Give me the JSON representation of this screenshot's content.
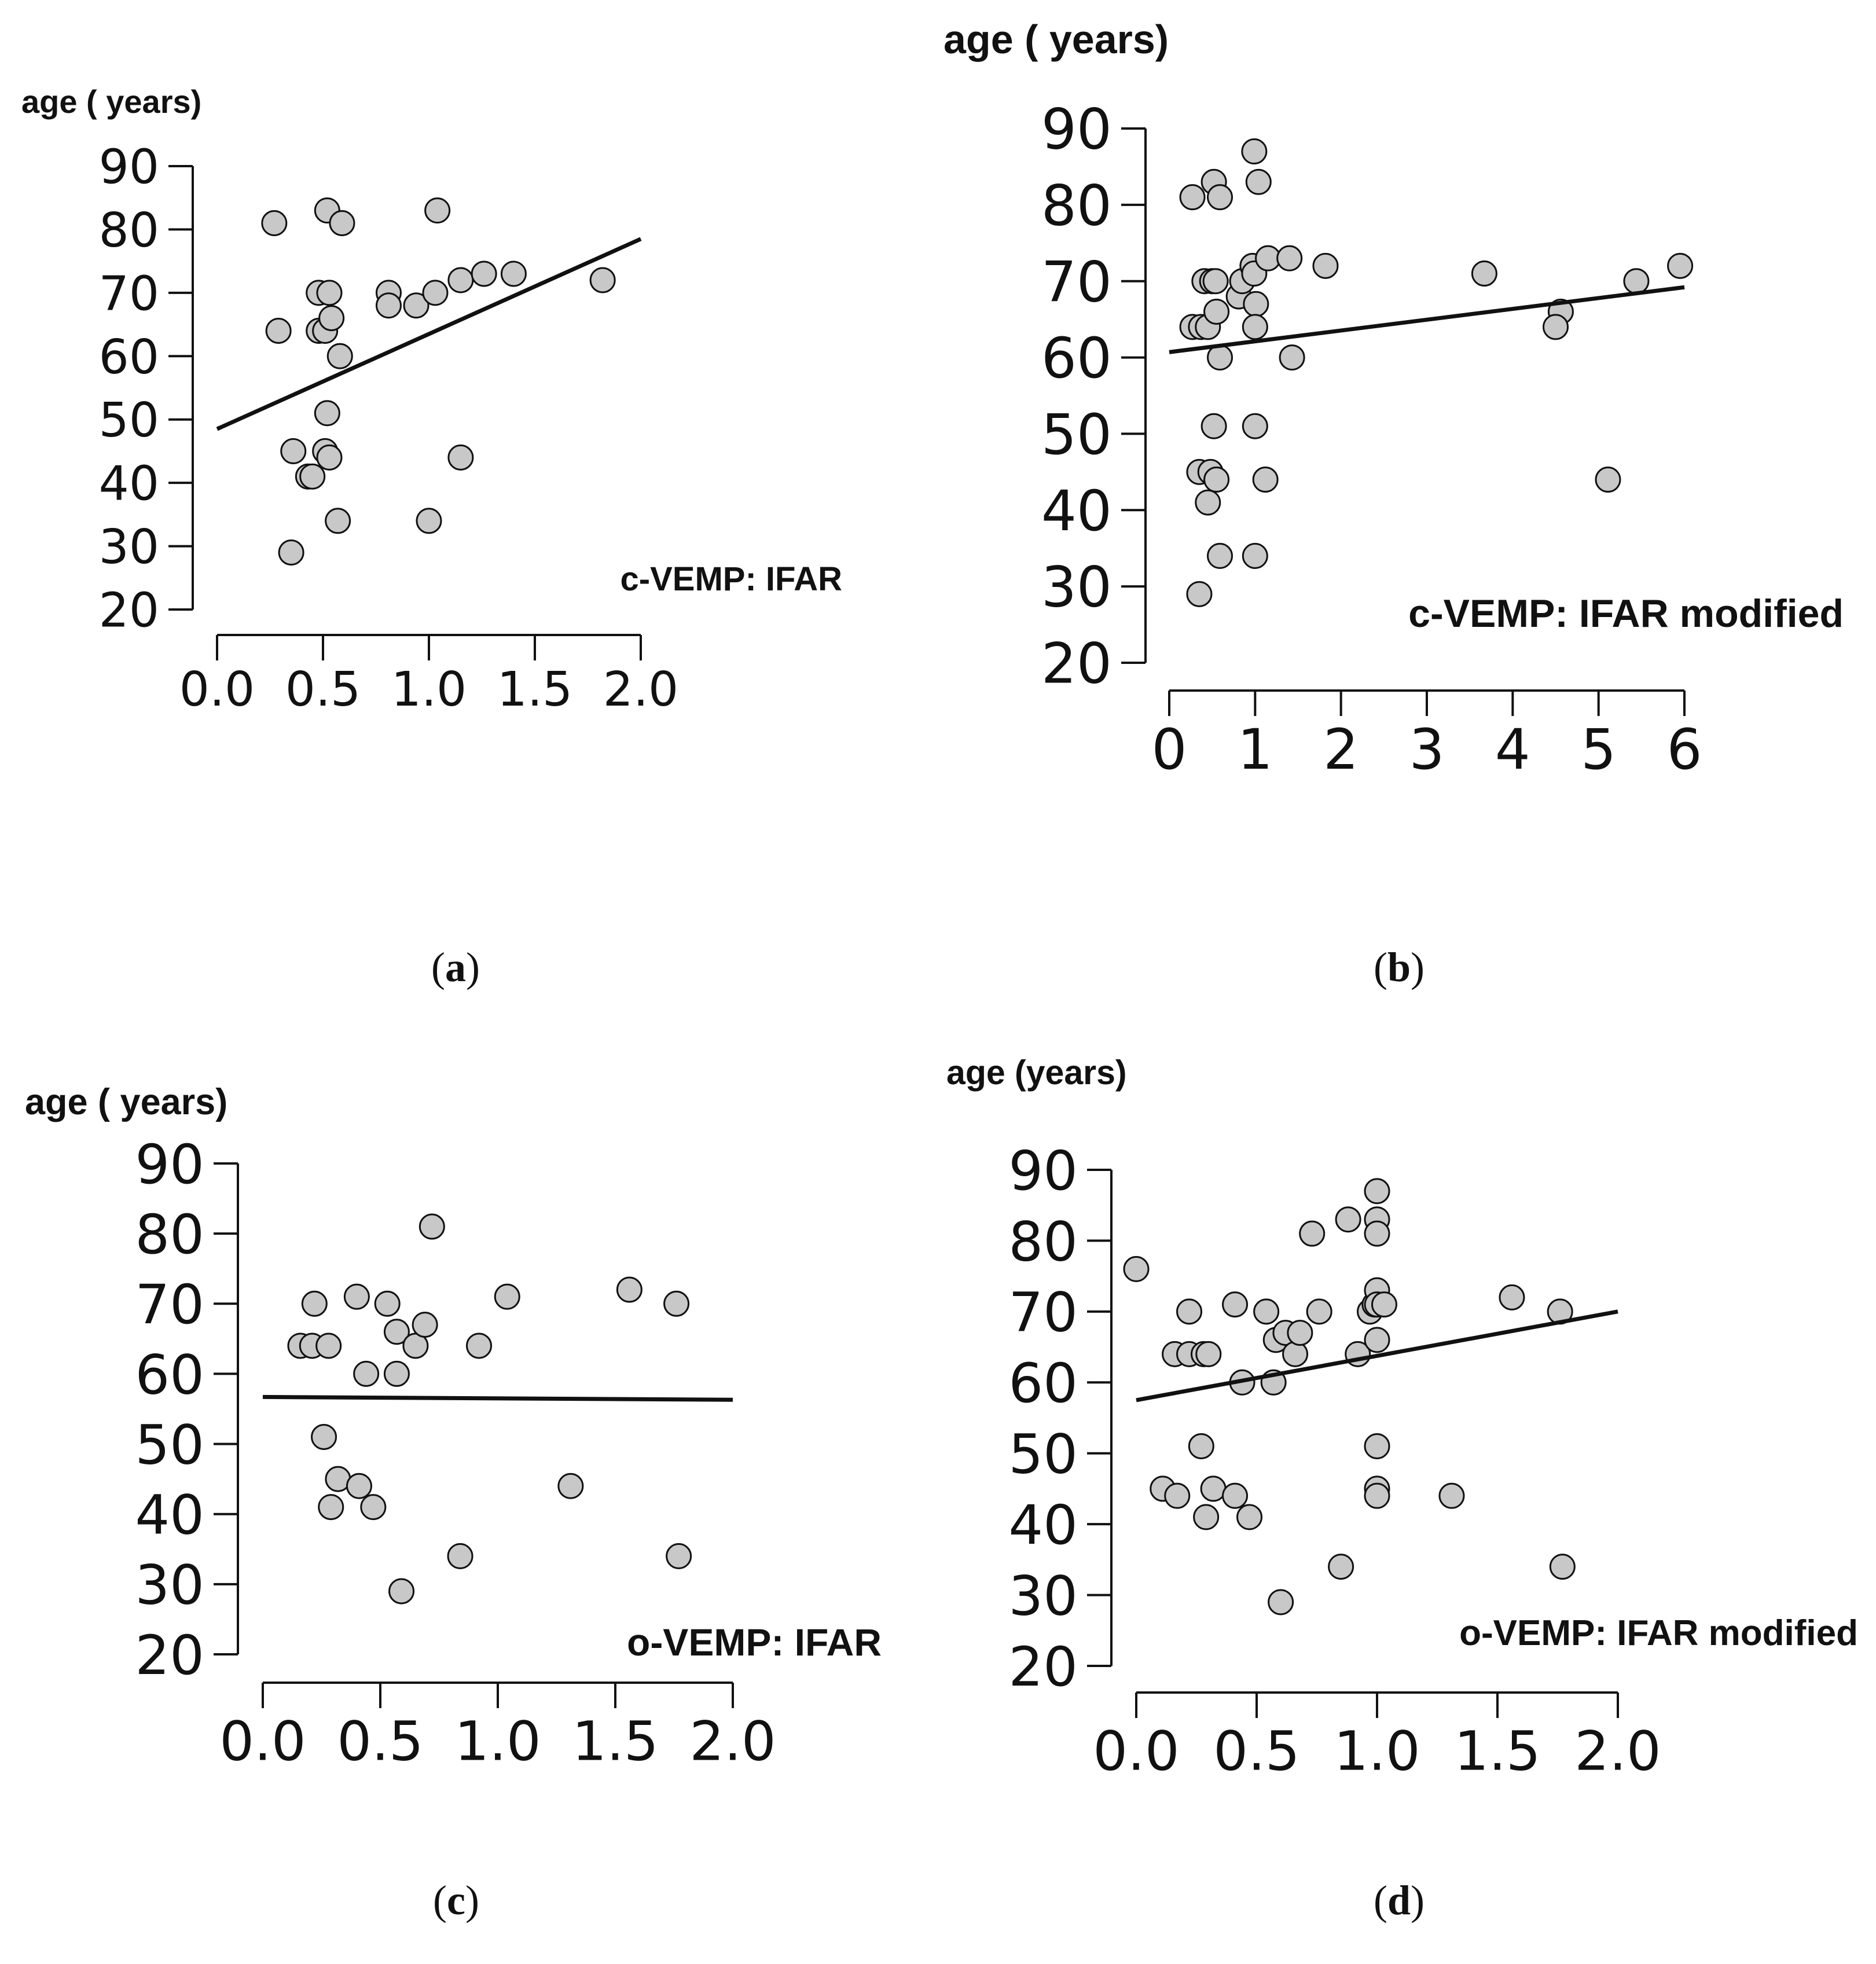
{
  "colors": {
    "point_fill": "#c8c8c8",
    "ink": "#111111",
    "background": "#ffffff"
  },
  "chart_data": [
    {
      "type": "scatter",
      "panel": "(a)",
      "panel_letter": "a",
      "ylabel": "age ( years)",
      "annotation": "c-VEMP: IFAR",
      "xlim": [
        0,
        2.0
      ],
      "ylim": [
        20,
        90
      ],
      "xticks": [
        "0.0",
        "0.5",
        "1.0",
        "1.5",
        "2.0"
      ],
      "yticks": [
        "20",
        "30",
        "40",
        "50",
        "60",
        "70",
        "80",
        "90"
      ],
      "regression": [
        [
          0,
          48.5
        ],
        [
          2.0,
          78.5
        ]
      ],
      "points": [
        [
          0.27,
          81
        ],
        [
          0.52,
          83
        ],
        [
          0.59,
          81
        ],
        [
          0.29,
          64
        ],
        [
          0.48,
          70
        ],
        [
          0.53,
          70
        ],
        [
          0.48,
          64
        ],
        [
          0.51,
          64
        ],
        [
          0.54,
          66
        ],
        [
          0.58,
          60
        ],
        [
          0.52,
          51
        ],
        [
          0.36,
          45
        ],
        [
          0.51,
          45
        ],
        [
          0.53,
          44
        ],
        [
          0.43,
          41
        ],
        [
          0.45,
          41
        ],
        [
          0.57,
          34
        ],
        [
          0.35,
          29
        ],
        [
          0.81,
          70
        ],
        [
          0.81,
          68
        ],
        [
          0.94,
          68
        ],
        [
          1.03,
          70
        ],
        [
          1.04,
          83
        ],
        [
          1.15,
          72
        ],
        [
          1.26,
          73
        ],
        [
          1.4,
          73
        ],
        [
          1.15,
          44
        ],
        [
          1.0,
          34
        ],
        [
          1.82,
          72
        ]
      ]
    },
    {
      "type": "scatter",
      "panel": "(b)",
      "panel_letter": "b",
      "ylabel": "age ( years)",
      "annotation": "c-VEMP: IFAR modified",
      "xlim": [
        0,
        6
      ],
      "ylim": [
        20,
        90
      ],
      "xticks": [
        "0",
        "1",
        "2",
        "3",
        "4",
        "5",
        "6"
      ],
      "yticks": [
        "20",
        "30",
        "40",
        "50",
        "60",
        "70",
        "80",
        "90"
      ],
      "regression": [
        [
          0,
          60.7
        ],
        [
          6,
          69.2
        ]
      ],
      "points": [
        [
          0.27,
          81
        ],
        [
          0.52,
          83
        ],
        [
          0.59,
          81
        ],
        [
          0.99,
          87
        ],
        [
          1.04,
          83
        ],
        [
          0.27,
          64
        ],
        [
          0.37,
          64
        ],
        [
          0.45,
          64
        ],
        [
          0.41,
          70
        ],
        [
          0.5,
          70
        ],
        [
          0.54,
          70
        ],
        [
          0.55,
          66
        ],
        [
          0.59,
          60
        ],
        [
          0.52,
          51
        ],
        [
          0.35,
          45
        ],
        [
          0.48,
          45
        ],
        [
          0.55,
          44
        ],
        [
          0.45,
          41
        ],
        [
          0.59,
          34
        ],
        [
          0.35,
          29
        ],
        [
          0.81,
          68
        ],
        [
          0.85,
          70
        ],
        [
          0.97,
          72
        ],
        [
          0.99,
          71
        ],
        [
          1.01,
          67
        ],
        [
          1.0,
          64
        ],
        [
          1.0,
          51
        ],
        [
          1.12,
          44
        ],
        [
          1.0,
          34
        ],
        [
          1.15,
          73
        ],
        [
          1.4,
          73
        ],
        [
          1.43,
          60
        ],
        [
          1.82,
          72
        ],
        [
          3.67,
          71
        ],
        [
          4.56,
          66
        ],
        [
          4.5,
          64
        ],
        [
          5.11,
          44
        ],
        [
          5.44,
          70
        ],
        [
          5.95,
          72
        ]
      ]
    },
    {
      "type": "scatter",
      "panel": "(c)",
      "panel_letter": "c",
      "ylabel": "age ( years)",
      "annotation": "o-VEMP: IFAR",
      "xlim": [
        0,
        2.0
      ],
      "ylim": [
        20,
        90
      ],
      "xticks": [
        "0.0",
        "0.5",
        "1.0",
        "1.5",
        "2.0"
      ],
      "yticks": [
        "20",
        "30",
        "40",
        "50",
        "60",
        "70",
        "80",
        "90"
      ],
      "regression": [
        [
          0,
          56.7
        ],
        [
          2.0,
          56.3
        ]
      ],
      "points": [
        [
          0.16,
          64
        ],
        [
          0.21,
          64
        ],
        [
          0.28,
          64
        ],
        [
          0.22,
          70
        ],
        [
          0.4,
          71
        ],
        [
          0.53,
          70
        ],
        [
          0.57,
          66
        ],
        [
          0.65,
          64
        ],
        [
          0.69,
          67
        ],
        [
          0.72,
          81
        ],
        [
          0.44,
          60
        ],
        [
          0.57,
          60
        ],
        [
          0.26,
          51
        ],
        [
          0.32,
          45
        ],
        [
          0.41,
          44
        ],
        [
          0.47,
          41
        ],
        [
          0.29,
          41
        ],
        [
          0.59,
          29
        ],
        [
          0.84,
          34
        ],
        [
          0.92,
          64
        ],
        [
          1.04,
          71
        ],
        [
          1.31,
          44
        ],
        [
          1.56,
          72
        ],
        [
          1.76,
          70
        ],
        [
          1.77,
          34
        ]
      ]
    },
    {
      "type": "scatter",
      "panel": "(d)",
      "panel_letter": "d",
      "ylabel": "age (years)",
      "annotation": "o-VEMP: IFAR modified",
      "xlim": [
        0,
        2.0
      ],
      "ylim": [
        20,
        90
      ],
      "xticks": [
        "0.0",
        "0.5",
        "1.0",
        "1.5",
        "2.0"
      ],
      "yticks": [
        "20",
        "30",
        "40",
        "50",
        "60",
        "70",
        "80",
        "90"
      ],
      "regression": [
        [
          0,
          57.5
        ],
        [
          2.0,
          70.0
        ]
      ],
      "points": [
        [
          0.0,
          76
        ],
        [
          0.11,
          45
        ],
        [
          0.17,
          44
        ],
        [
          0.16,
          64
        ],
        [
          0.22,
          70
        ],
        [
          0.22,
          64
        ],
        [
          0.28,
          64
        ],
        [
          0.3,
          64
        ],
        [
          0.27,
          51
        ],
        [
          0.32,
          45
        ],
        [
          0.29,
          41
        ],
        [
          0.41,
          71
        ],
        [
          0.41,
          44
        ],
        [
          0.47,
          41
        ],
        [
          0.44,
          60
        ],
        [
          0.54,
          70
        ],
        [
          0.57,
          60
        ],
        [
          0.58,
          66
        ],
        [
          0.62,
          67
        ],
        [
          0.66,
          64
        ],
        [
          0.68,
          67
        ],
        [
          0.73,
          81
        ],
        [
          0.76,
          70
        ],
        [
          0.85,
          34
        ],
        [
          0.88,
          83
        ],
        [
          0.92,
          64
        ],
        [
          0.97,
          70
        ],
        [
          0.99,
          71
        ],
        [
          1.0,
          87
        ],
        [
          1.0,
          83
        ],
        [
          1.0,
          81
        ],
        [
          1.0,
          73
        ],
        [
          1.0,
          71
        ],
        [
          1.03,
          71
        ],
        [
          1.0,
          66
        ],
        [
          1.0,
          51
        ],
        [
          1.0,
          45
        ],
        [
          1.0,
          44
        ],
        [
          0.6,
          29
        ],
        [
          1.31,
          44
        ],
        [
          1.56,
          72
        ],
        [
          1.76,
          70
        ],
        [
          1.77,
          34
        ]
      ]
    }
  ]
}
